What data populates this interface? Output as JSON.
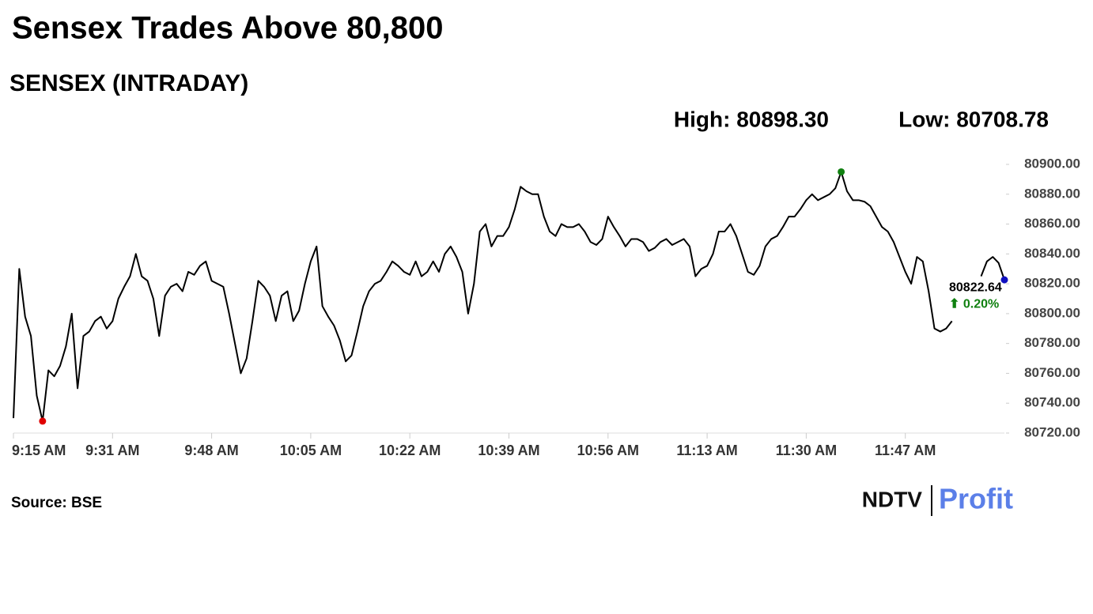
{
  "chart_data": {
    "type": "line",
    "title": "Sensex Trades Above 80,800",
    "subtitle": "SENSEX (INTRADAY)",
    "high_label": "High: 80898.30",
    "low_label": "Low: 80708.78",
    "change_label": "⬆ 0.20%",
    "source": "Source: BSE",
    "brand": [
      "NDTV",
      "Profit"
    ],
    "color": "#000000",
    "low_color": "#e00000",
    "high_color": "#108010",
    "last_color": "#1010c0",
    "change_color": "#108010",
    "ylim": [
      80720,
      80900
    ],
    "yticks": [
      {
        "value": 80720,
        "label": "80720.00"
      },
      {
        "value": 80740,
        "label": "80740.00"
      },
      {
        "value": 80760,
        "label": "80760.00"
      },
      {
        "value": 80780,
        "label": "80780.00"
      },
      {
        "value": 80800,
        "label": "80800.00"
      },
      {
        "value": 80820,
        "label": "80820.00"
      },
      {
        "value": 80840,
        "label": "80840.00"
      },
      {
        "value": 80860,
        "label": "80860.00"
      },
      {
        "value": 80880,
        "label": "80880.00"
      },
      {
        "value": 80900,
        "label": "80900.00"
      }
    ],
    "categories": [
      "9:15 AM",
      null,
      null,
      null,
      null,
      null,
      null,
      null,
      null,
      null,
      null,
      null,
      null,
      null,
      null,
      null,
      null,
      "9:31 AM",
      null,
      null,
      null,
      null,
      null,
      null,
      null,
      null,
      null,
      null,
      null,
      null,
      null,
      null,
      null,
      null,
      "9:48 AM",
      null,
      null,
      null,
      null,
      null,
      null,
      null,
      null,
      null,
      null,
      null,
      null,
      null,
      null,
      null,
      null,
      "10:05 AM",
      null,
      null,
      null,
      null,
      null,
      null,
      null,
      null,
      null,
      null,
      null,
      null,
      null,
      null,
      null,
      null,
      "10:22 AM",
      null,
      null,
      null,
      null,
      null,
      null,
      null,
      null,
      null,
      null,
      null,
      null,
      null,
      null,
      null,
      null,
      "10:39 AM",
      null,
      null,
      null,
      null,
      null,
      null,
      null,
      null,
      null,
      null,
      null,
      null,
      null,
      null,
      null,
      null,
      "10:56 AM",
      null,
      null,
      null,
      null,
      null,
      null,
      null,
      null,
      null,
      null,
      null,
      null,
      null,
      null,
      null,
      null,
      "11:13 AM",
      null,
      null,
      null,
      null,
      null,
      null,
      null,
      null,
      null,
      null,
      null,
      null,
      null,
      null,
      null,
      null,
      "11:30 AM",
      null,
      null,
      null,
      null,
      null,
      null,
      null,
      null,
      null,
      null,
      null,
      null,
      null,
      null,
      null,
      null,
      "11:47 AM",
      null,
      null,
      null,
      null,
      null,
      null,
      null,
      null,
      null,
      null,
      null,
      null,
      null,
      null,
      null,
      null,
      null
    ],
    "values": [
      80730,
      80830,
      80798,
      80785,
      80745,
      80728,
      80762,
      80758,
      80765,
      80778,
      80800,
      80750,
      80785,
      80788,
      80795,
      80798,
      80790,
      80795,
      80810,
      80818,
      80825,
      80840,
      80825,
      80822,
      80810,
      80785,
      80812,
      80818,
      80820,
      80815,
      80828,
      80826,
      80832,
      80835,
      80822,
      80820,
      80818,
      80800,
      80780,
      80760,
      80770,
      80795,
      80822,
      80818,
      80812,
      80795,
      80812,
      80815,
      80795,
      80802,
      80820,
      80835,
      80845,
      80805,
      80798,
      80792,
      80782,
      80768,
      80772,
      80788,
      80805,
      80815,
      80820,
      80822,
      80828,
      80835,
      80832,
      80828,
      80826,
      80835,
      80825,
      80828,
      80835,
      80828,
      80840,
      80845,
      80838,
      80828,
      80800,
      80820,
      80855,
      80860,
      80845,
      80852,
      80852,
      80858,
      80870,
      80885,
      80882,
      80880,
      80880,
      80865,
      80855,
      80852,
      80860,
      80858,
      80858,
      80860,
      80855,
      80848,
      80846,
      80850,
      80865,
      80858,
      80852,
      80845,
      80850,
      80850,
      80848,
      80842,
      80844,
      80848,
      80850,
      80846,
      80848,
      80850,
      80845,
      80825,
      80830,
      80832,
      80840,
      80855,
      80855,
      80860,
      80852,
      80840,
      80828,
      80826,
      80832,
      80845,
      80850,
      80852,
      80858,
      80865,
      80865,
      80870,
      80876,
      80880,
      80876,
      80878,
      80880,
      80884,
      80895,
      80882,
      80876,
      80876,
      80875,
      80872,
      80865,
      80858,
      80855,
      80848,
      80838,
      80828,
      80820,
      80838,
      80835,
      80815,
      80790,
      80788,
      80790,
      80795,
      null,
      null,
      null,
      null,
      80825,
      80835,
      80838,
      80834,
      80822.64
    ]
  }
}
